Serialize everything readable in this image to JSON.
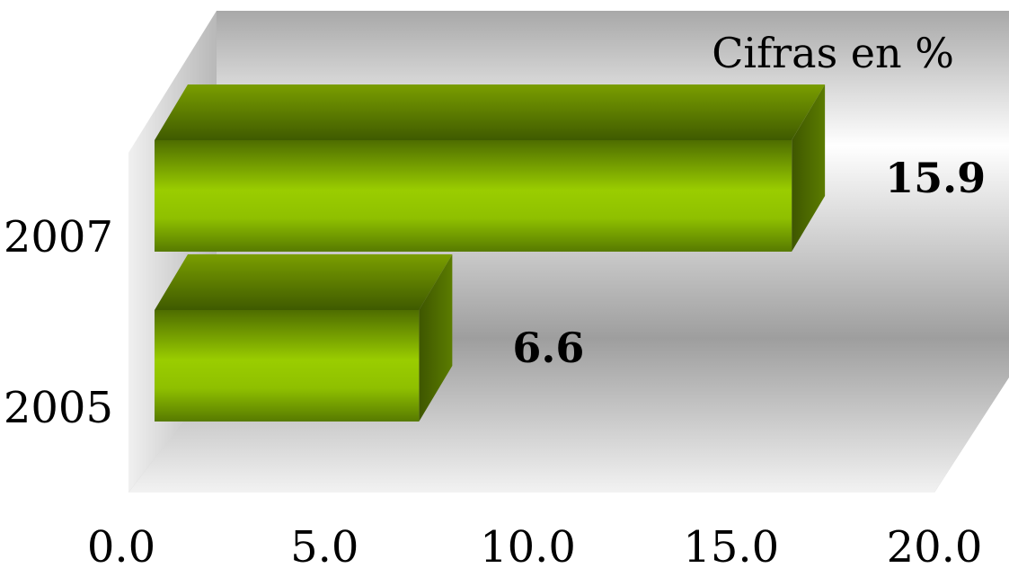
{
  "chart_data": {
    "type": "bar",
    "orientation": "horizontal",
    "style": "3d",
    "unit_label": "Cifras en %",
    "categories": [
      "2005",
      "2007"
    ],
    "values": [
      6.6,
      15.9
    ],
    "data_labels": [
      "6.6",
      "15.9"
    ],
    "xlim": [
      0,
      20
    ],
    "x_ticks": [
      "0.0",
      "5.0",
      "10.0",
      "15.0",
      "20.0"
    ],
    "bar_color": "#8fbf00",
    "bar_top_color": "#5a7a00",
    "bar_side_color": "#3f5400",
    "grid": false,
    "legend": "none"
  }
}
